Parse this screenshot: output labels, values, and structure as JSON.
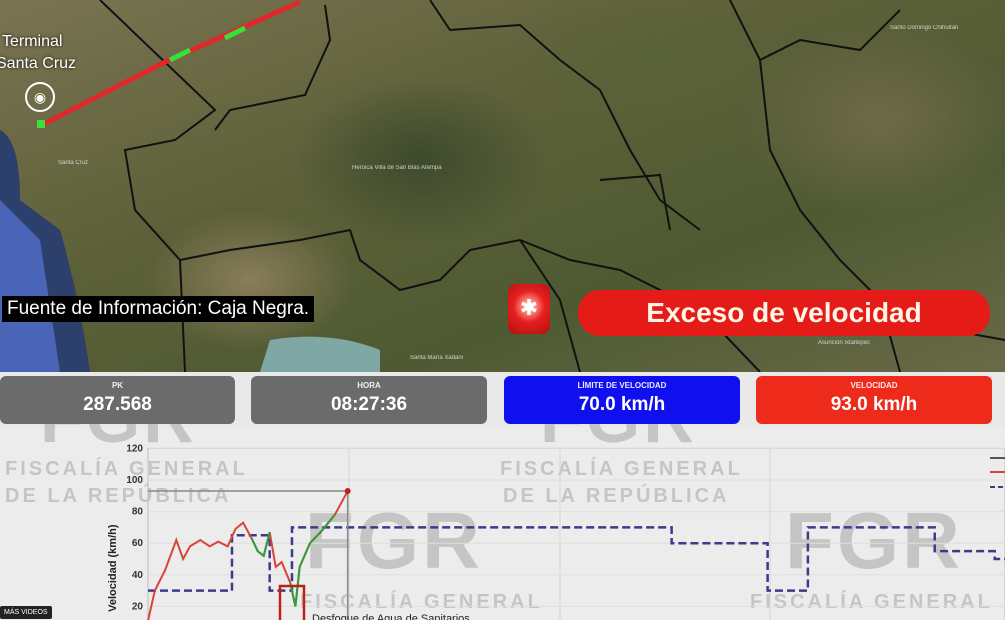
{
  "map": {
    "terminal_label_line1": "Terminal",
    "terminal_label_line2": "Santa Cruz",
    "place_labels": [
      "Heroica Villa de San Blas Atempa",
      "Santa María Xadani",
      "Asunción Ixtaltepec",
      "Santo Domingo Chihuitán",
      "Santa Cruz"
    ],
    "source_text": "Fuente de Información: Caja Negra.",
    "alert_icon": "alarm-light-icon",
    "alert_text": "Exceso de velocidad",
    "terminal_icon": "bus-pin-icon",
    "route_colors": {
      "over_limit": "#e0282a",
      "within_limit": "#37e03a"
    }
  },
  "stats": [
    {
      "label": "PK",
      "value": "287.568",
      "color": "#6b6b6b"
    },
    {
      "label": "HORA",
      "value": "08:27:36",
      "color": "#6b6b6b"
    },
    {
      "label": "LÍMITE DE VELOCIDAD",
      "value": "70.0 km/h",
      "color": "#1010ee"
    },
    {
      "label": "VELOCIDAD",
      "value": "93.0 km/h",
      "color": "#ee2a1a"
    }
  ],
  "watermarks": {
    "logo": "FGR",
    "line1": "FISCALÍA GENERAL",
    "line2": "DE LA REPÚBLICA"
  },
  "chart_data": {
    "type": "line",
    "ylabel": "Velocidad (km/h)",
    "yticks": [
      "120",
      "100",
      "80",
      "60",
      "40",
      "20"
    ],
    "ylim": [
      0,
      120
    ],
    "xlim": [
      0,
      100
    ],
    "grid": true,
    "legend": "top-right",
    "annotation": "Desfogue de Agua de Sanitarios",
    "series": [
      {
        "role": "speed",
        "color": "#d9443a",
        "highlight_color": "#2f9e3a",
        "x": [
          0,
          0.8,
          2,
          3.3,
          4.1,
          4.9,
          6.1,
          7.2,
          8.2,
          9.3,
          10.2,
          11.1,
          12.1,
          12.8,
          13.5,
          14.2,
          14.9,
          15.6,
          16.6,
          17.2,
          17.7,
          18.9,
          20.3,
          21.8,
          23.3
        ],
        "y": [
          11,
          30,
          43,
          62,
          50,
          58,
          62,
          58,
          61,
          58,
          69,
          73,
          63,
          55,
          52,
          67,
          45,
          48,
          35,
          20,
          45,
          60,
          68,
          78,
          93
        ]
      },
      {
        "role": "limit",
        "color": "#3b3b8a",
        "dashed": true,
        "x": [
          0,
          9.8,
          9.8,
          14.2,
          14.2,
          16.8,
          16.8,
          61.1,
          61.1,
          72.3,
          72.3,
          77,
          77,
          91.8,
          91.8,
          98.8,
          98.8,
          100
        ],
        "y": [
          30,
          30,
          65,
          65,
          30,
          30,
          70,
          70,
          60,
          60,
          30,
          30,
          70,
          70,
          55,
          55,
          50,
          50
        ]
      }
    ]
  },
  "overlay": {
    "more_videos": "MÁS VIDEOS"
  }
}
